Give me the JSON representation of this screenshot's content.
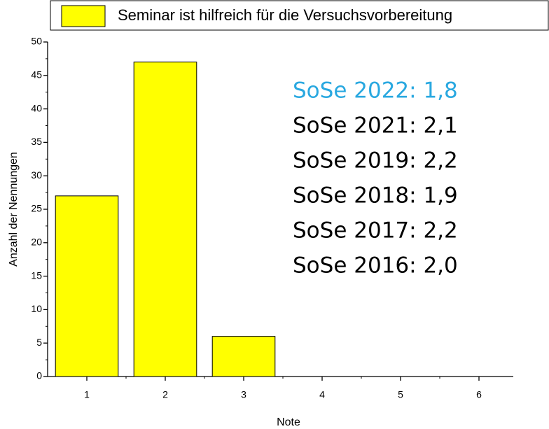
{
  "chart_data": {
    "type": "bar",
    "legend_label": "Seminar ist hilfreich für die Versuchsvorbereitung",
    "xlabel": "Note",
    "ylabel": "Anzahl der Nennungen",
    "categories": [
      "1",
      "2",
      "3",
      "4",
      "5",
      "6"
    ],
    "values": [
      27,
      47,
      6,
      0,
      0,
      0
    ],
    "color": "#ffff00",
    "ylim": [
      0,
      50
    ],
    "yticks": [
      0,
      5,
      10,
      15,
      20,
      25,
      30,
      35,
      40,
      45,
      50
    ],
    "annotations": [
      {
        "text": "SoSe 2022: 1,8",
        "color": "#29a8e0"
      },
      {
        "text": "SoSe 2021: 2,1",
        "color": "#000000"
      },
      {
        "text": "SoSe 2019: 2,2",
        "color": "#000000"
      },
      {
        "text": "SoSe 2018: 1,9",
        "color": "#000000"
      },
      {
        "text": "SoSe 2017: 2,2",
        "color": "#000000"
      },
      {
        "text": "SoSe 2016: 2,0",
        "color": "#000000"
      }
    ]
  }
}
